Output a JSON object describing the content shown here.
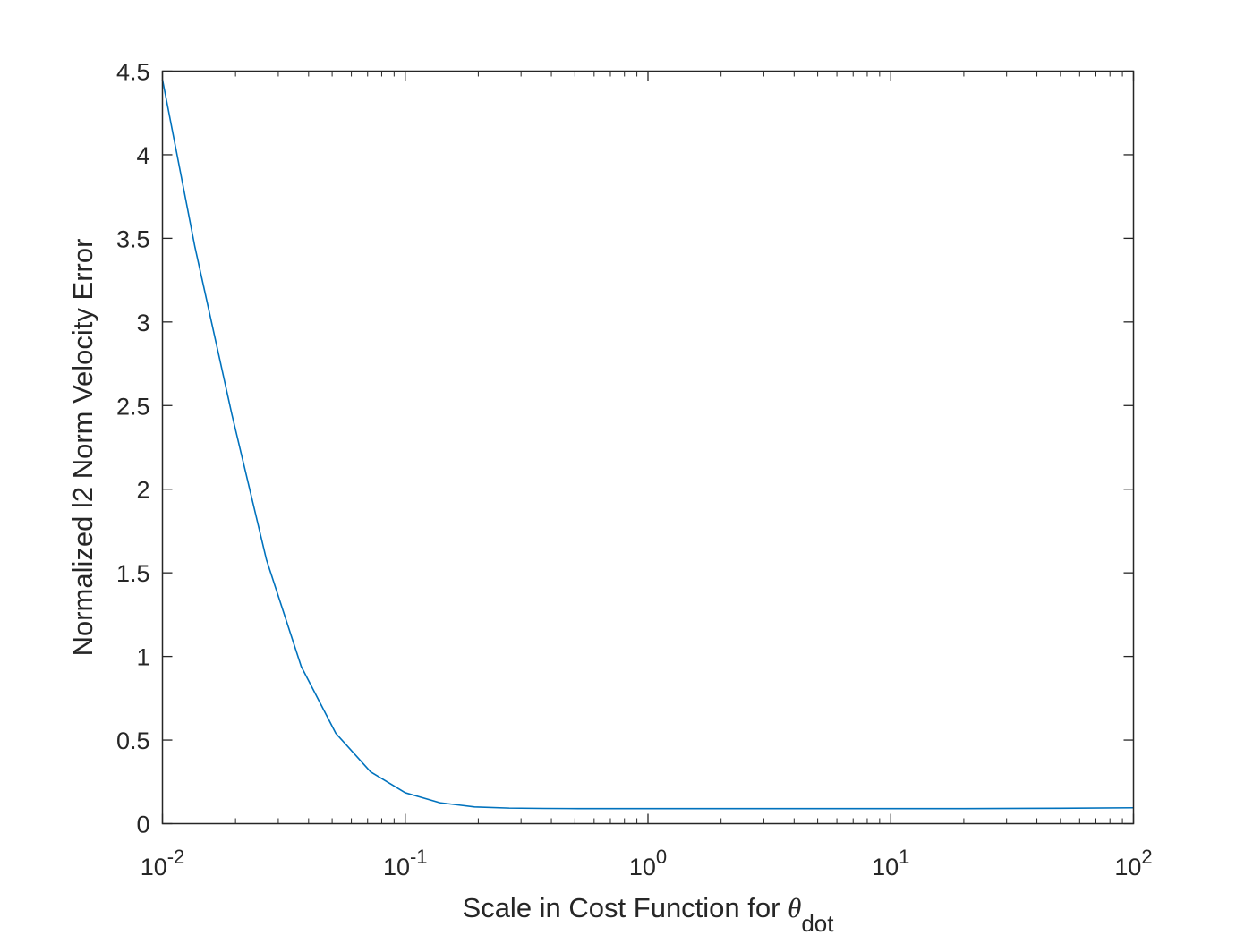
{
  "chart_data": {
    "type": "line",
    "x_scale": "log",
    "y_scale": "linear",
    "xlim": [
      0.01,
      100
    ],
    "ylim": [
      0,
      4.5
    ],
    "x_ticks": [
      {
        "value": 0.01,
        "base": "10",
        "exp": "-2"
      },
      {
        "value": 0.1,
        "base": "10",
        "exp": "-1"
      },
      {
        "value": 1,
        "base": "10",
        "exp": "0"
      },
      {
        "value": 10,
        "base": "10",
        "exp": "1"
      },
      {
        "value": 100,
        "base": "10",
        "exp": "2"
      }
    ],
    "y_ticks": [
      "0",
      "0.5",
      "1",
      "1.5",
      "2",
      "2.5",
      "3",
      "3.5",
      "4",
      "4.5"
    ],
    "xlabel": {
      "main": "Scale in Cost Function for ",
      "symbol": "θ",
      "subscript": "dot"
    },
    "ylabel": "Normalized l2 Norm Velocity Error",
    "grid": false,
    "box": true,
    "series": [
      {
        "color": "#0072BD",
        "x": [
          0.01,
          0.0136,
          0.0193,
          0.0268,
          0.0373,
          0.0518,
          0.072,
          0.1,
          0.139,
          0.193,
          0.268,
          0.373,
          0.518,
          0.72,
          1,
          2,
          5,
          10,
          20,
          50,
          100
        ],
        "y": [
          4.45,
          3.45,
          2.45,
          1.58,
          0.94,
          0.54,
          0.31,
          0.185,
          0.125,
          0.1,
          0.093,
          0.091,
          0.09,
          0.09,
          0.09,
          0.09,
          0.09,
          0.09,
          0.09,
          0.092,
          0.095
        ]
      }
    ]
  }
}
